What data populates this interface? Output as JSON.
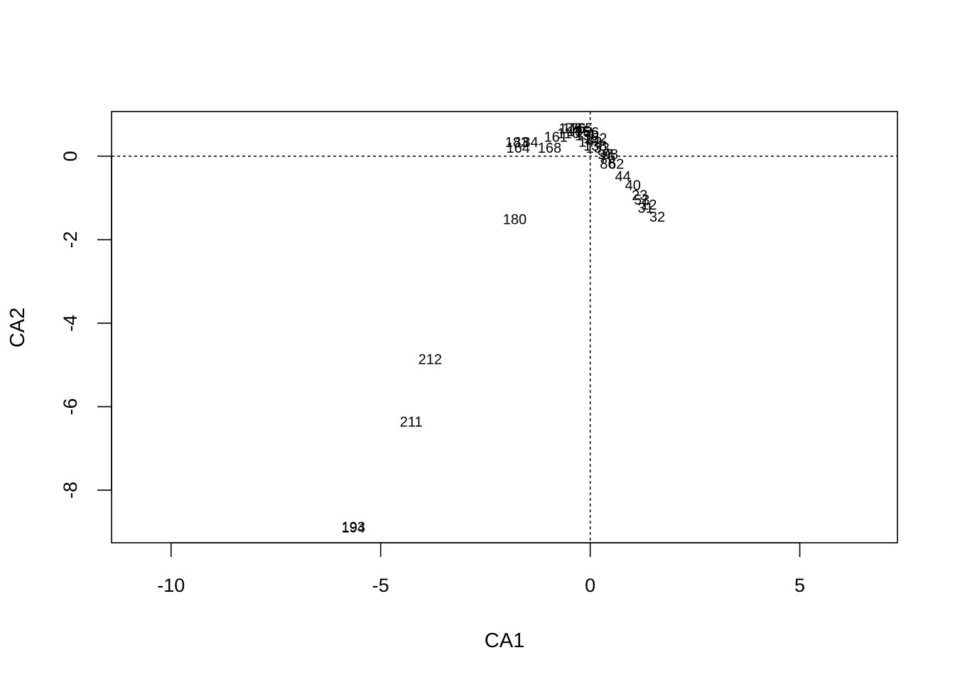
{
  "chart_data": {
    "type": "scatter",
    "title": "",
    "xlabel": "CA1",
    "ylabel": "CA2",
    "xlim": [
      -11.42,
      7.33
    ],
    "ylim": [
      -9.26,
      1.07
    ],
    "x_ticks": [
      -10,
      -5,
      0,
      5
    ],
    "x_tick_labels": [
      "-10",
      "-5",
      "0",
      "5"
    ],
    "y_ticks": [
      0,
      -2,
      -4,
      -6,
      -8
    ],
    "y_tick_labels": [
      "0",
      "-2",
      "-4",
      "-6",
      "-8"
    ],
    "reference_lines": {
      "x": 0,
      "y": 0,
      "style": "dotted"
    },
    "grid": false,
    "points": [
      {
        "label": "193",
        "x": -5.65,
        "y": -8.88
      },
      {
        "label": "194",
        "x": -5.65,
        "y": -8.89
      },
      {
        "label": "211",
        "x": -4.27,
        "y": -6.36
      },
      {
        "label": "212",
        "x": -3.82,
        "y": -4.86
      },
      {
        "label": "180",
        "x": -1.8,
        "y": -1.51
      },
      {
        "label": "183",
        "x": -1.75,
        "y": 0.34
      },
      {
        "label": "184",
        "x": -1.52,
        "y": 0.34
      },
      {
        "label": "164",
        "x": -1.72,
        "y": 0.2
      },
      {
        "label": "168",
        "x": -0.97,
        "y": 0.2
      },
      {
        "label": "161",
        "x": -0.82,
        "y": 0.47
      },
      {
        "label": "116",
        "x": -0.52,
        "y": 0.55
      },
      {
        "label": "175",
        "x": -0.47,
        "y": 0.67
      },
      {
        "label": "176",
        "x": -0.38,
        "y": 0.67
      },
      {
        "label": "165",
        "x": -0.22,
        "y": 0.67
      },
      {
        "label": "155",
        "x": -0.27,
        "y": 0.6
      },
      {
        "label": "156",
        "x": -0.07,
        "y": 0.58
      },
      {
        "label": "150",
        "x": -0.08,
        "y": 0.5
      },
      {
        "label": "152",
        "x": 0.12,
        "y": 0.43
      },
      {
        "label": "142",
        "x": 0.0,
        "y": 0.35
      },
      {
        "label": "138",
        "x": 0.12,
        "y": 0.25
      },
      {
        "label": "133",
        "x": 0.18,
        "y": 0.2
      },
      {
        "label": "97",
        "x": 0.36,
        "y": 0.05
      },
      {
        "label": "98",
        "x": 0.48,
        "y": 0.05
      },
      {
        "label": "76",
        "x": 0.42,
        "y": -0.04
      },
      {
        "label": "86",
        "x": 0.42,
        "y": -0.18
      },
      {
        "label": "62",
        "x": 0.62,
        "y": -0.18
      },
      {
        "label": "44",
        "x": 0.78,
        "y": -0.48
      },
      {
        "label": "40",
        "x": 1.02,
        "y": -0.69
      },
      {
        "label": "23",
        "x": 1.18,
        "y": -0.93
      },
      {
        "label": "53",
        "x": 1.23,
        "y": -1.04
      },
      {
        "label": "12",
        "x": 1.4,
        "y": -1.16
      },
      {
        "label": "31",
        "x": 1.32,
        "y": -1.24
      },
      {
        "label": "32",
        "x": 1.6,
        "y": -1.45
      }
    ]
  }
}
